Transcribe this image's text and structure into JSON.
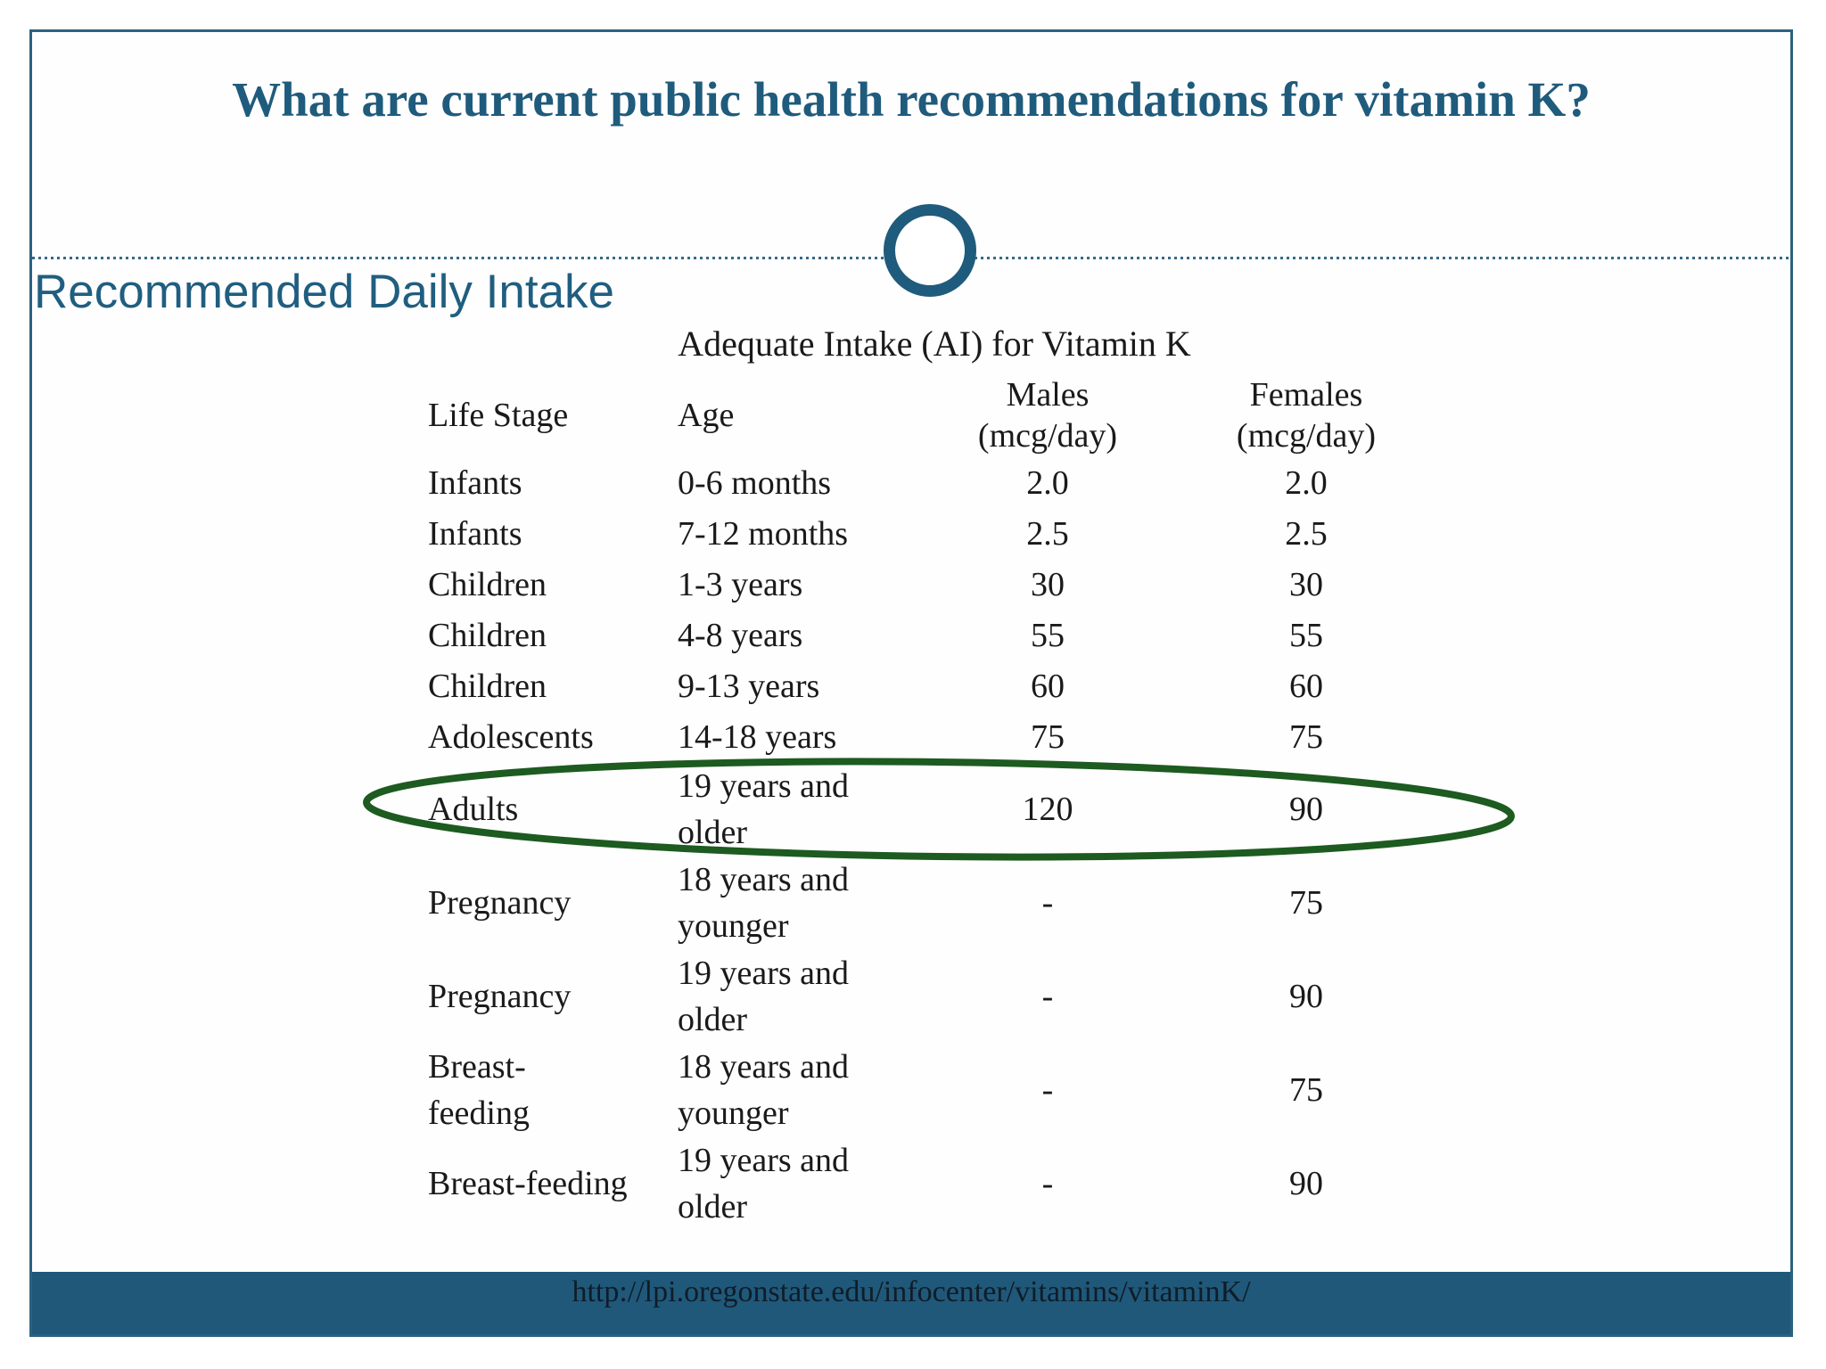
{
  "slide": {
    "title": "What are current public health recommendations for vitamin K?",
    "section_heading": "Recommended Daily Intake",
    "table": {
      "title": "Adequate Intake (AI) for Vitamin K",
      "columns": [
        {
          "label": "Life Stage",
          "sub": ""
        },
        {
          "label": "Age",
          "sub": ""
        },
        {
          "label": "Males",
          "sub": "(mcg/day)"
        },
        {
          "label": "Females",
          "sub": "(mcg/day)"
        }
      ],
      "rows": [
        {
          "life_stage": "Infants",
          "age": "0-6 months",
          "males": "2.0",
          "females": "2.0",
          "highlighted": false
        },
        {
          "life_stage": "Infants",
          "age": "7-12 months",
          "males": "2.5",
          "females": "2.5",
          "highlighted": false
        },
        {
          "life_stage": "Children",
          "age": "1-3 years",
          "males": "30",
          "females": "30",
          "highlighted": false
        },
        {
          "life_stage": "Children",
          "age": "4-8 years",
          "males": "55",
          "females": "55",
          "highlighted": false
        },
        {
          "life_stage": "Children",
          "age": "9-13 years",
          "males": "60",
          "females": "60",
          "highlighted": false
        },
        {
          "life_stage": "Adolescents",
          "age": "14-18 years",
          "males": "75",
          "females": "75",
          "highlighted": false
        },
        {
          "life_stage": "Adults",
          "age": "19 years and\nolder",
          "males": "120",
          "females": "90",
          "highlighted": true
        },
        {
          "life_stage": "Pregnancy",
          "age": "18 years and\nyounger",
          "males": "-",
          "females": "75",
          "highlighted": false
        },
        {
          "life_stage": "Pregnancy",
          "age": "19 years and\nolder",
          "males": "-",
          "females": "90",
          "highlighted": false
        },
        {
          "life_stage": "Breast-\nfeeding",
          "age": "18 years and\nyounger",
          "males": "-",
          "females": "75",
          "highlighted": false
        },
        {
          "life_stage": "Breast-feeding",
          "age": "19 years and\nolder",
          "males": "-",
          "females": "90",
          "highlighted": false
        }
      ]
    },
    "footer": {
      "url": "http://lpi.oregonstate.edu/infocenter/vitamins/vitaminK/"
    },
    "colors": {
      "accent_teal": "#1f5b7c",
      "footer_bar": "#20587a",
      "highlight_ellipse_green": "#1d5b20",
      "table_text": "#1a1a1a"
    }
  }
}
